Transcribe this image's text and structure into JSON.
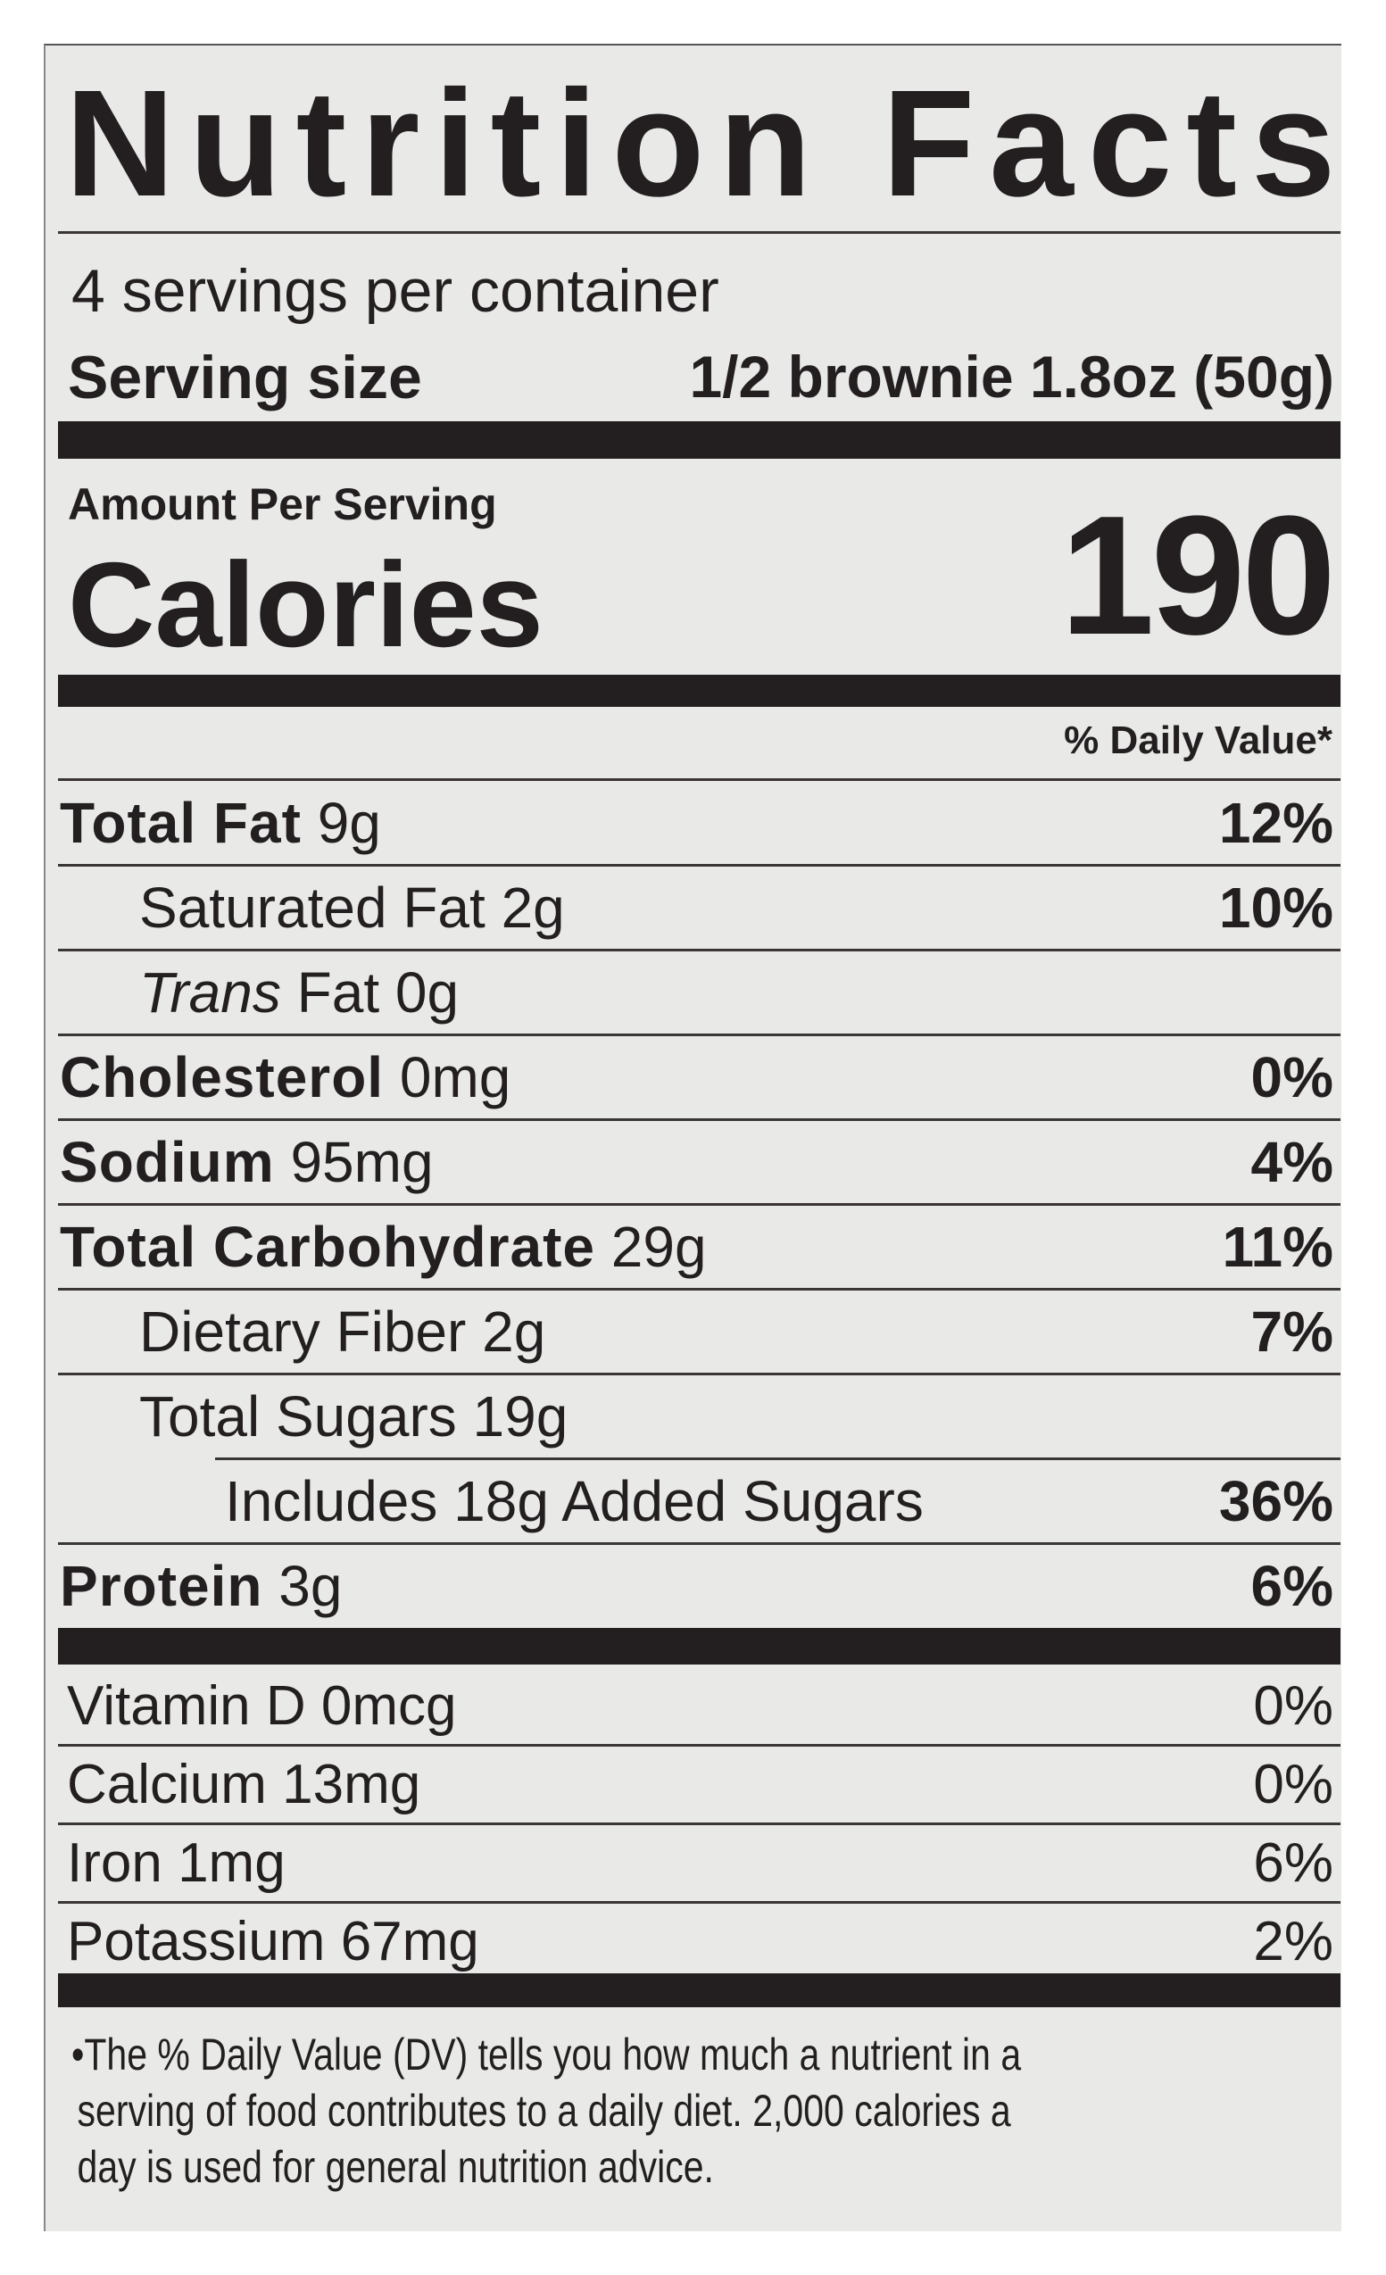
{
  "title": "Nutrition Facts",
  "servings_per_container": "4 servings per container",
  "serving_size": {
    "label": "Serving size",
    "value": "1/2 brownie 1.8oz (50g)"
  },
  "amount_per_serving": "Amount Per Serving",
  "calories": {
    "label": "Calories",
    "value": "190"
  },
  "daily_value_header": "% Daily Value*",
  "nutrients": [
    {
      "name": "Total Fat",
      "amount": "9g",
      "dv": "12%"
    },
    {
      "name": "Saturated Fat",
      "amount": "2g",
      "dv": "10%"
    },
    {
      "name": "Trans",
      "name_rest": "Fat",
      "amount": "0g",
      "dv": ""
    },
    {
      "name": "Cholesterol",
      "amount": "0mg",
      "dv": "0%"
    },
    {
      "name": "Sodium",
      "amount": "95mg",
      "dv": "4%"
    },
    {
      "name": "Total Carbohydrate",
      "amount": "29g",
      "dv": "11%"
    },
    {
      "name": "Dietary Fiber",
      "amount": "2g",
      "dv": "7%"
    },
    {
      "name": "Total Sugars",
      "amount": "19g",
      "dv": ""
    },
    {
      "name": "Includes 18g Added Sugars",
      "amount": "",
      "dv": "36%"
    },
    {
      "name": "Protein",
      "amount": "3g",
      "dv": "6%"
    }
  ],
  "vitamins": [
    {
      "name": "Vitamin D",
      "amount": "0mcg",
      "dv": "0%"
    },
    {
      "name": "Calcium",
      "amount": "13mg",
      "dv": "0%"
    },
    {
      "name": "Iron",
      "amount": "1mg",
      "dv": "6%"
    },
    {
      "name": "Potassium",
      "amount": "67mg",
      "dv": "2%"
    }
  ],
  "footnote": [
    "•The % Daily Value (DV) tells you how much a nutrient in a",
    "serving of food contributes to a daily diet. 2,000 calories a",
    "day is used for general nutrition advice."
  ],
  "colors": {
    "ink": "#231f20",
    "panel": "#e9eae8",
    "background": "#ffffff"
  }
}
